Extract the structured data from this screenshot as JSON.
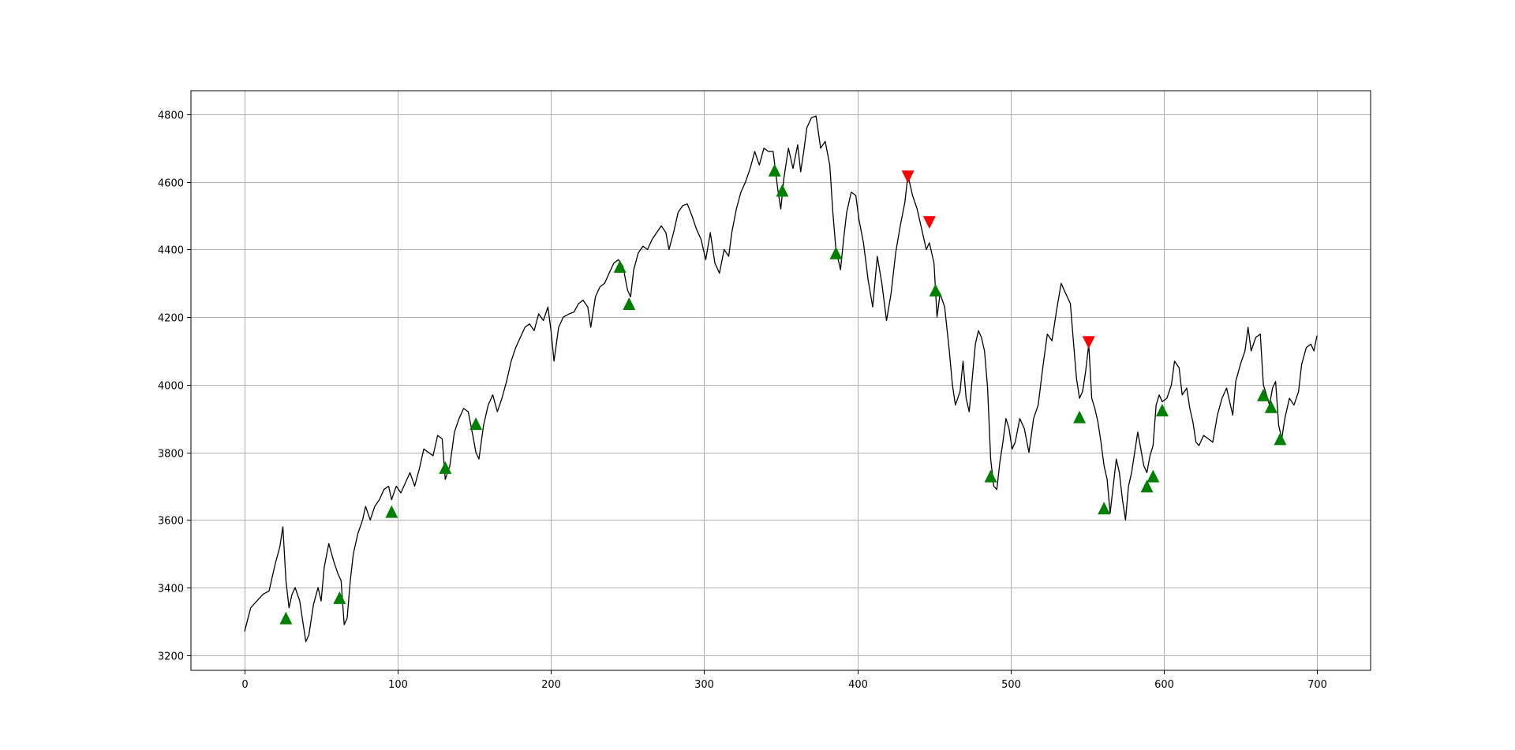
{
  "chart_data": {
    "type": "line",
    "title": "",
    "xlabel": "",
    "ylabel": "",
    "xlim": [
      -35,
      735
    ],
    "ylim": [
      3155,
      4870
    ],
    "grid": true,
    "x_ticks": [
      0,
      100,
      200,
      300,
      400,
      500,
      600,
      700
    ],
    "y_ticks": [
      3200,
      3400,
      3600,
      3800,
      4000,
      4200,
      4400,
      4600,
      4800
    ],
    "colors": {
      "line": "#000000",
      "buy": "#008000",
      "sell": "#ff0000",
      "grid": "#b0b0b0"
    },
    "series": [
      {
        "points": [
          [
            0,
            3270
          ],
          [
            4,
            3340
          ],
          [
            8,
            3360
          ],
          [
            12,
            3380
          ],
          [
            16,
            3390
          ],
          [
            20,
            3470
          ],
          [
            23,
            3520
          ],
          [
            25,
            3580
          ],
          [
            27,
            3420
          ],
          [
            29,
            3340
          ],
          [
            31,
            3380
          ],
          [
            33,
            3400
          ],
          [
            36,
            3360
          ],
          [
            38,
            3300
          ],
          [
            40,
            3240
          ],
          [
            42,
            3260
          ],
          [
            45,
            3350
          ],
          [
            48,
            3400
          ],
          [
            50,
            3360
          ],
          [
            52,
            3460
          ],
          [
            55,
            3530
          ],
          [
            58,
            3480
          ],
          [
            61,
            3440
          ],
          [
            63,
            3420
          ],
          [
            65,
            3290
          ],
          [
            67,
            3310
          ],
          [
            69,
            3420
          ],
          [
            71,
            3500
          ],
          [
            74,
            3560
          ],
          [
            77,
            3600
          ],
          [
            79,
            3640
          ],
          [
            82,
            3600
          ],
          [
            85,
            3640
          ],
          [
            88,
            3660
          ],
          [
            91,
            3690
          ],
          [
            94,
            3700
          ],
          [
            96,
            3660
          ],
          [
            99,
            3700
          ],
          [
            102,
            3680
          ],
          [
            105,
            3710
          ],
          [
            108,
            3740
          ],
          [
            111,
            3700
          ],
          [
            114,
            3750
          ],
          [
            117,
            3810
          ],
          [
            120,
            3800
          ],
          [
            123,
            3790
          ],
          [
            126,
            3850
          ],
          [
            129,
            3840
          ],
          [
            131,
            3720
          ],
          [
            134,
            3760
          ],
          [
            137,
            3860
          ],
          [
            140,
            3900
          ],
          [
            143,
            3930
          ],
          [
            146,
            3920
          ],
          [
            149,
            3850
          ],
          [
            151,
            3800
          ],
          [
            153,
            3780
          ],
          [
            156,
            3880
          ],
          [
            159,
            3940
          ],
          [
            162,
            3970
          ],
          [
            165,
            3920
          ],
          [
            168,
            3960
          ],
          [
            171,
            4010
          ],
          [
            174,
            4070
          ],
          [
            177,
            4110
          ],
          [
            180,
            4140
          ],
          [
            183,
            4170
          ],
          [
            186,
            4180
          ],
          [
            189,
            4160
          ],
          [
            192,
            4210
          ],
          [
            195,
            4190
          ],
          [
            198,
            4230
          ],
          [
            200,
            4160
          ],
          [
            202,
            4070
          ],
          [
            205,
            4170
          ],
          [
            208,
            4200
          ],
          [
            212,
            4210
          ],
          [
            215,
            4215
          ],
          [
            218,
            4240
          ],
          [
            221,
            4250
          ],
          [
            224,
            4230
          ],
          [
            226,
            4170
          ],
          [
            229,
            4260
          ],
          [
            232,
            4290
          ],
          [
            235,
            4300
          ],
          [
            238,
            4330
          ],
          [
            241,
            4360
          ],
          [
            244,
            4370
          ],
          [
            247,
            4350
          ],
          [
            250,
            4280
          ],
          [
            252,
            4260
          ],
          [
            254,
            4340
          ],
          [
            257,
            4390
          ],
          [
            260,
            4410
          ],
          [
            263,
            4400
          ],
          [
            266,
            4430
          ],
          [
            269,
            4450
          ],
          [
            272,
            4470
          ],
          [
            275,
            4450
          ],
          [
            277,
            4400
          ],
          [
            280,
            4450
          ],
          [
            283,
            4510
          ],
          [
            286,
            4530
          ],
          [
            289,
            4535
          ],
          [
            292,
            4500
          ],
          [
            295,
            4460
          ],
          [
            298,
            4430
          ],
          [
            301,
            4370
          ],
          [
            304,
            4450
          ],
          [
            307,
            4360
          ],
          [
            310,
            4330
          ],
          [
            313,
            4400
          ],
          [
            316,
            4380
          ],
          [
            318,
            4450
          ],
          [
            321,
            4520
          ],
          [
            324,
            4570
          ],
          [
            327,
            4600
          ],
          [
            330,
            4640
          ],
          [
            333,
            4690
          ],
          [
            336,
            4650
          ],
          [
            339,
            4700
          ],
          [
            342,
            4690
          ],
          [
            345,
            4690
          ],
          [
            348,
            4580
          ],
          [
            350,
            4520
          ],
          [
            352,
            4610
          ],
          [
            355,
            4700
          ],
          [
            358,
            4640
          ],
          [
            361,
            4710
          ],
          [
            363,
            4630
          ],
          [
            365,
            4690
          ],
          [
            367,
            4760
          ],
          [
            370,
            4790
          ],
          [
            373,
            4795
          ],
          [
            376,
            4700
          ],
          [
            379,
            4720
          ],
          [
            382,
            4650
          ],
          [
            384,
            4510
          ],
          [
            386,
            4400
          ],
          [
            389,
            4340
          ],
          [
            391,
            4430
          ],
          [
            393,
            4510
          ],
          [
            396,
            4570
          ],
          [
            399,
            4560
          ],
          [
            401,
            4490
          ],
          [
            404,
            4420
          ],
          [
            407,
            4310
          ],
          [
            410,
            4230
          ],
          [
            413,
            4380
          ],
          [
            416,
            4300
          ],
          [
            419,
            4190
          ],
          [
            422,
            4270
          ],
          [
            425,
            4390
          ],
          [
            428,
            4470
          ],
          [
            431,
            4540
          ],
          [
            433,
            4620
          ],
          [
            436,
            4560
          ],
          [
            439,
            4520
          ],
          [
            442,
            4460
          ],
          [
            445,
            4400
          ],
          [
            447,
            4420
          ],
          [
            450,
            4360
          ],
          [
            452,
            4200
          ],
          [
            454,
            4270
          ],
          [
            457,
            4230
          ],
          [
            460,
            4100
          ],
          [
            462,
            4000
          ],
          [
            464,
            3940
          ],
          [
            467,
            3980
          ],
          [
            469,
            4070
          ],
          [
            471,
            3960
          ],
          [
            473,
            3920
          ],
          [
            475,
            4020
          ],
          [
            477,
            4120
          ],
          [
            479,
            4160
          ],
          [
            481,
            4140
          ],
          [
            483,
            4100
          ],
          [
            485,
            3990
          ],
          [
            487,
            3780
          ],
          [
            489,
            3700
          ],
          [
            491,
            3690
          ],
          [
            493,
            3770
          ],
          [
            495,
            3830
          ],
          [
            497,
            3900
          ],
          [
            499,
            3870
          ],
          [
            501,
            3810
          ],
          [
            503,
            3830
          ],
          [
            506,
            3900
          ],
          [
            509,
            3870
          ],
          [
            512,
            3800
          ],
          [
            515,
            3900
          ],
          [
            518,
            3940
          ],
          [
            521,
            4050
          ],
          [
            524,
            4150
          ],
          [
            527,
            4130
          ],
          [
            530,
            4220
          ],
          [
            533,
            4300
          ],
          [
            536,
            4270
          ],
          [
            539,
            4240
          ],
          [
            541,
            4130
          ],
          [
            543,
            4020
          ],
          [
            545,
            3960
          ],
          [
            547,
            3980
          ],
          [
            549,
            4040
          ],
          [
            551,
            4120
          ],
          [
            553,
            3960
          ],
          [
            555,
            3930
          ],
          [
            557,
            3890
          ],
          [
            559,
            3830
          ],
          [
            561,
            3760
          ],
          [
            563,
            3720
          ],
          [
            565,
            3620
          ],
          [
            567,
            3700
          ],
          [
            569,
            3780
          ],
          [
            571,
            3740
          ],
          [
            573,
            3660
          ],
          [
            575,
            3600
          ],
          [
            577,
            3700
          ],
          [
            579,
            3740
          ],
          [
            581,
            3800
          ],
          [
            583,
            3860
          ],
          [
            585,
            3810
          ],
          [
            587,
            3760
          ],
          [
            589,
            3740
          ],
          [
            591,
            3790
          ],
          [
            593,
            3820
          ],
          [
            595,
            3940
          ],
          [
            597,
            3970
          ],
          [
            599,
            3950
          ],
          [
            602,
            3960
          ],
          [
            605,
            4000
          ],
          [
            607,
            4070
          ],
          [
            610,
            4050
          ],
          [
            612,
            3970
          ],
          [
            615,
            3990
          ],
          [
            617,
            3930
          ],
          [
            619,
            3890
          ],
          [
            621,
            3830
          ],
          [
            623,
            3820
          ],
          [
            626,
            3850
          ],
          [
            629,
            3840
          ],
          [
            632,
            3830
          ],
          [
            635,
            3910
          ],
          [
            638,
            3960
          ],
          [
            641,
            3990
          ],
          [
            643,
            3950
          ],
          [
            645,
            3910
          ],
          [
            647,
            4010
          ],
          [
            650,
            4060
          ],
          [
            653,
            4100
          ],
          [
            655,
            4170
          ],
          [
            657,
            4100
          ],
          [
            660,
            4140
          ],
          [
            663,
            4150
          ],
          [
            665,
            4000
          ],
          [
            667,
            3970
          ],
          [
            669,
            3940
          ],
          [
            671,
            3990
          ],
          [
            673,
            4010
          ],
          [
            675,
            3880
          ],
          [
            677,
            3840
          ],
          [
            679,
            3900
          ],
          [
            682,
            3960
          ],
          [
            685,
            3940
          ],
          [
            688,
            3980
          ],
          [
            690,
            4060
          ],
          [
            693,
            4110
          ],
          [
            696,
            4120
          ],
          [
            698,
            4100
          ],
          [
            700,
            4145
          ]
        ]
      }
    ],
    "buy_signals": [
      [
        27,
        3310
      ],
      [
        62,
        3370
      ],
      [
        96,
        3625
      ],
      [
        131,
        3755
      ],
      [
        151,
        3885
      ],
      [
        245,
        4350
      ],
      [
        251,
        4240
      ],
      [
        346,
        4635
      ],
      [
        351,
        4575
      ],
      [
        386,
        4390
      ],
      [
        451,
        4280
      ],
      [
        487,
        3730
      ],
      [
        545,
        3905
      ],
      [
        561,
        3635
      ],
      [
        589,
        3700
      ],
      [
        593,
        3730
      ],
      [
        599,
        3925
      ],
      [
        665,
        3970
      ],
      [
        670,
        3935
      ],
      [
        676,
        3840
      ]
    ],
    "sell_signals": [
      [
        433,
        4615
      ],
      [
        447,
        4480
      ],
      [
        551,
        4125
      ]
    ]
  }
}
